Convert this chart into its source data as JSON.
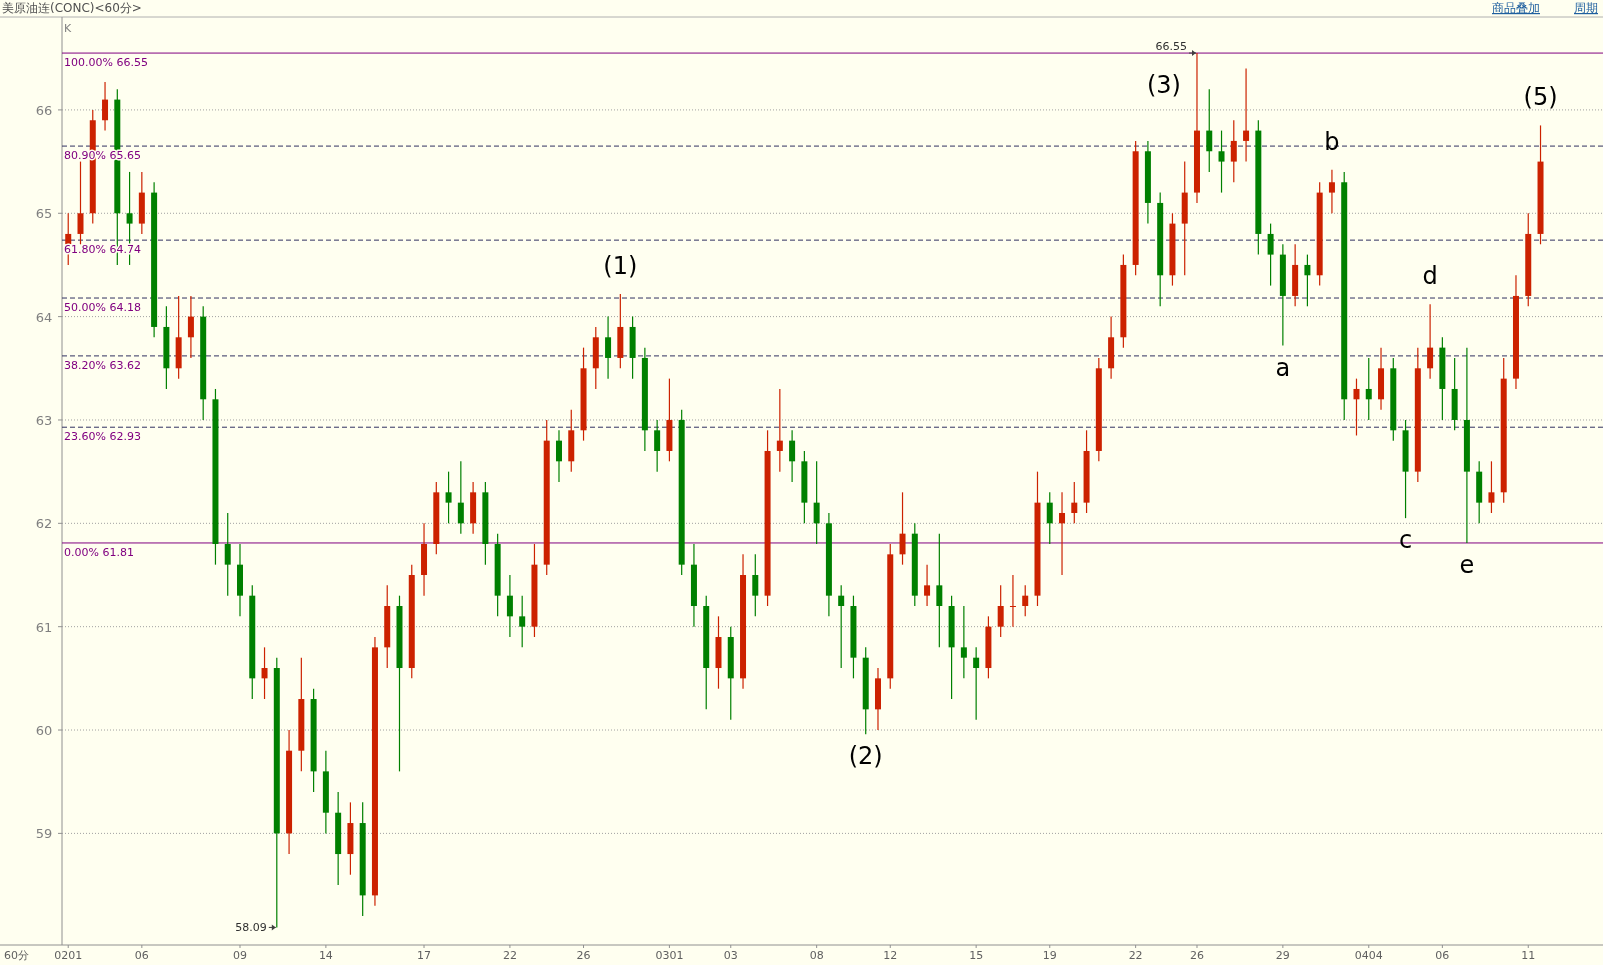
{
  "chart_data": {
    "type": "candlestick",
    "title": "美原油连(CONC)<60分>",
    "categories": [
      "0201",
      null,
      null,
      null,
      null,
      null,
      "06",
      null,
      null,
      null,
      null,
      null,
      null,
      null,
      "09",
      null,
      null,
      null,
      null,
      null,
      null,
      "14",
      null,
      null,
      null,
      null,
      null,
      null,
      null,
      "17",
      null,
      null,
      null,
      null,
      null,
      null,
      "22",
      null,
      null,
      null,
      null,
      null,
      "26",
      null,
      null,
      null,
      null,
      null,
      null,
      "0301",
      null,
      null,
      null,
      null,
      "03",
      null,
      null,
      null,
      null,
      null,
      null,
      "08",
      null,
      null,
      null,
      null,
      null,
      "12",
      null,
      null,
      null,
      null,
      null,
      null,
      "15",
      null,
      null,
      null,
      null,
      null,
      "19",
      null,
      null,
      null,
      null,
      null,
      null,
      "22",
      null,
      null,
      null,
      null,
      "26",
      null,
      null,
      null,
      null,
      null,
      null,
      "29",
      null,
      null,
      null,
      null,
      null,
      null,
      "0404",
      null,
      null,
      null,
      null,
      null,
      "06",
      null,
      null,
      null,
      null,
      null,
      null,
      "11",
      null
    ],
    "ohlc": [
      [
        64.7,
        65.0,
        64.5,
        64.8
      ],
      [
        64.8,
        65.5,
        64.7,
        65.0
      ],
      [
        65.0,
        66.0,
        64.9,
        65.9
      ],
      [
        65.9,
        66.27,
        65.8,
        66.1
      ],
      [
        66.1,
        66.2,
        64.5,
        65.0
      ],
      [
        65.0,
        65.4,
        64.5,
        64.9
      ],
      [
        64.9,
        65.4,
        64.8,
        65.2
      ],
      [
        65.2,
        65.3,
        63.8,
        63.9
      ],
      [
        63.9,
        64.1,
        63.3,
        63.5
      ],
      [
        63.5,
        64.2,
        63.4,
        63.8
      ],
      [
        63.8,
        64.2,
        63.6,
        64.0
      ],
      [
        64.0,
        64.1,
        63.0,
        63.2
      ],
      [
        63.2,
        63.3,
        61.6,
        61.8
      ],
      [
        61.8,
        62.1,
        61.3,
        61.6
      ],
      [
        61.6,
        61.8,
        61.1,
        61.3
      ],
      [
        61.3,
        61.4,
        60.3,
        60.5
      ],
      [
        60.5,
        60.8,
        60.3,
        60.6
      ],
      [
        60.6,
        60.7,
        58.09,
        59.0
      ],
      [
        59.0,
        60.0,
        58.8,
        59.8
      ],
      [
        59.8,
        60.7,
        59.6,
        60.3
      ],
      [
        60.3,
        60.4,
        59.4,
        59.6
      ],
      [
        59.6,
        59.8,
        59.0,
        59.2
      ],
      [
        59.2,
        59.4,
        58.5,
        58.8
      ],
      [
        58.8,
        59.3,
        58.6,
        59.1
      ],
      [
        59.1,
        59.3,
        58.2,
        58.4
      ],
      [
        58.4,
        60.9,
        58.3,
        60.8
      ],
      [
        60.8,
        61.4,
        60.6,
        61.2
      ],
      [
        61.2,
        61.3,
        59.6,
        60.6
      ],
      [
        60.6,
        61.6,
        60.5,
        61.5
      ],
      [
        61.5,
        62.0,
        61.3,
        61.8
      ],
      [
        61.8,
        62.4,
        61.7,
        62.3
      ],
      [
        62.3,
        62.5,
        62.0,
        62.2
      ],
      [
        62.2,
        62.6,
        61.9,
        62.0
      ],
      [
        62.0,
        62.4,
        61.9,
        62.3
      ],
      [
        62.3,
        62.4,
        61.6,
        61.8
      ],
      [
        61.8,
        61.9,
        61.1,
        61.3
      ],
      [
        61.3,
        61.5,
        60.9,
        61.1
      ],
      [
        61.1,
        61.3,
        60.8,
        61.0
      ],
      [
        61.0,
        61.8,
        60.9,
        61.6
      ],
      [
        61.6,
        63.0,
        61.5,
        62.8
      ],
      [
        62.8,
        62.9,
        62.4,
        62.6
      ],
      [
        62.6,
        63.1,
        62.5,
        62.9
      ],
      [
        62.9,
        63.7,
        62.8,
        63.5
      ],
      [
        63.5,
        63.9,
        63.3,
        63.8
      ],
      [
        63.8,
        64.0,
        63.4,
        63.6
      ],
      [
        63.6,
        64.22,
        63.5,
        63.9
      ],
      [
        63.9,
        64.0,
        63.4,
        63.6
      ],
      [
        63.6,
        63.7,
        62.7,
        62.9
      ],
      [
        62.9,
        63.0,
        62.5,
        62.7
      ],
      [
        62.7,
        63.4,
        62.6,
        63.0
      ],
      [
        63.0,
        63.1,
        61.5,
        61.6
      ],
      [
        61.6,
        61.8,
        61.0,
        61.2
      ],
      [
        61.2,
        61.3,
        60.2,
        60.6
      ],
      [
        60.6,
        61.1,
        60.4,
        60.9
      ],
      [
        60.9,
        61.0,
        60.1,
        60.5
      ],
      [
        60.5,
        61.7,
        60.4,
        61.5
      ],
      [
        61.5,
        61.7,
        61.1,
        61.3
      ],
      [
        61.3,
        62.9,
        61.2,
        62.7
      ],
      [
        62.7,
        63.3,
        62.5,
        62.8
      ],
      [
        62.8,
        62.9,
        62.4,
        62.6
      ],
      [
        62.6,
        62.7,
        62.0,
        62.2
      ],
      [
        62.2,
        62.6,
        61.8,
        62.0
      ],
      [
        62.0,
        62.1,
        61.1,
        61.3
      ],
      [
        61.3,
        61.4,
        60.6,
        61.2
      ],
      [
        61.2,
        61.3,
        60.5,
        60.7
      ],
      [
        60.7,
        60.8,
        59.96,
        60.2
      ],
      [
        60.2,
        60.6,
        60.0,
        60.5
      ],
      [
        60.5,
        61.8,
        60.4,
        61.7
      ],
      [
        61.7,
        62.3,
        61.6,
        61.9
      ],
      [
        61.9,
        62.0,
        61.2,
        61.3
      ],
      [
        61.3,
        61.6,
        61.2,
        61.4
      ],
      [
        61.4,
        61.9,
        60.8,
        61.2
      ],
      [
        61.2,
        61.3,
        60.3,
        60.8
      ],
      [
        60.8,
        61.2,
        60.5,
        60.7
      ],
      [
        60.7,
        60.8,
        60.1,
        60.6
      ],
      [
        60.6,
        61.1,
        60.5,
        61.0
      ],
      [
        61.0,
        61.4,
        60.9,
        61.2
      ],
      [
        61.2,
        61.5,
        61.0,
        61.2
      ],
      [
        61.2,
        61.4,
        61.1,
        61.3
      ],
      [
        61.3,
        62.5,
        61.2,
        62.2
      ],
      [
        62.2,
        62.3,
        61.8,
        62.0
      ],
      [
        62.0,
        62.3,
        61.5,
        62.1
      ],
      [
        62.1,
        62.4,
        62.0,
        62.2
      ],
      [
        62.2,
        62.9,
        62.1,
        62.7
      ],
      [
        62.7,
        63.6,
        62.6,
        63.5
      ],
      [
        63.5,
        64.0,
        63.4,
        63.8
      ],
      [
        63.8,
        64.6,
        63.7,
        64.5
      ],
      [
        64.5,
        65.7,
        64.4,
        65.6
      ],
      [
        65.6,
        65.7,
        64.9,
        65.1
      ],
      [
        65.1,
        65.2,
        64.1,
        64.4
      ],
      [
        64.4,
        65.0,
        64.3,
        64.9
      ],
      [
        64.9,
        65.5,
        64.4,
        65.2
      ],
      [
        65.2,
        66.55,
        65.1,
        65.8
      ],
      [
        65.8,
        66.2,
        65.4,
        65.6
      ],
      [
        65.6,
        65.8,
        65.2,
        65.5
      ],
      [
        65.5,
        65.9,
        65.3,
        65.7
      ],
      [
        65.7,
        66.4,
        65.5,
        65.8
      ],
      [
        65.8,
        65.9,
        64.6,
        64.8
      ],
      [
        64.8,
        64.9,
        64.3,
        64.6
      ],
      [
        64.6,
        64.7,
        63.72,
        64.2
      ],
      [
        64.2,
        64.7,
        64.1,
        64.5
      ],
      [
        64.5,
        64.6,
        64.1,
        64.4
      ],
      [
        64.4,
        65.3,
        64.3,
        65.2
      ],
      [
        65.2,
        65.42,
        65.0,
        65.3
      ],
      [
        65.3,
        65.4,
        63.0,
        63.2
      ],
      [
        63.2,
        63.4,
        62.85,
        63.3
      ],
      [
        63.3,
        63.6,
        63.0,
        63.2
      ],
      [
        63.2,
        63.7,
        63.1,
        63.5
      ],
      [
        63.5,
        63.6,
        62.8,
        62.9
      ],
      [
        62.9,
        63.0,
        62.05,
        62.5
      ],
      [
        62.5,
        63.7,
        62.4,
        63.5
      ],
      [
        63.5,
        64.12,
        63.4,
        63.7
      ],
      [
        63.7,
        63.8,
        63.0,
        63.3
      ],
      [
        63.3,
        63.6,
        62.9,
        63.0
      ],
      [
        63.0,
        63.7,
        61.81,
        62.5
      ],
      [
        62.5,
        62.6,
        62.0,
        62.2
      ],
      [
        62.2,
        62.6,
        62.1,
        62.3
      ],
      [
        62.3,
        63.6,
        62.2,
        63.4
      ],
      [
        63.4,
        64.4,
        63.3,
        64.2
      ],
      [
        64.2,
        65.0,
        64.1,
        64.8
      ],
      [
        64.8,
        65.85,
        64.7,
        65.5
      ]
    ],
    "ylim": [
      57.92,
      66.87
    ],
    "yticks": [
      59,
      60,
      61,
      62,
      63,
      64,
      65,
      66
    ],
    "grid": "y",
    "ref_lines": [
      {
        "axis": "y",
        "value": 66.55,
        "label": "100.00% 66.55",
        "color": "#800080",
        "line_style": "solid"
      },
      {
        "axis": "y",
        "value": 65.65,
        "label": "80.90% 65.65",
        "color": "#303060",
        "line_style": "dashed"
      },
      {
        "axis": "y",
        "value": 64.74,
        "label": "61.80% 64.74",
        "color": "#303060",
        "line_style": "dashed"
      },
      {
        "axis": "y",
        "value": 64.18,
        "label": "50.00% 64.18",
        "color": "#303060",
        "line_style": "dashed"
      },
      {
        "axis": "y",
        "value": 63.62,
        "label": "38.20% 63.62",
        "color": "#303060",
        "line_style": "dashed"
      },
      {
        "axis": "y",
        "value": 62.93,
        "label": "23.60% 62.93",
        "color": "#303060",
        "line_style": "dashed"
      },
      {
        "axis": "y",
        "value": 61.81,
        "label": "0.00% 61.81",
        "color": "#800080",
        "line_style": "solid"
      }
    ],
    "annotations": [
      "K",
      "60分",
      "商品叠加",
      "周期",
      {
        "text": "(1)",
        "y": 64.22
      },
      {
        "text": "(2)",
        "y": 59.96
      },
      "66.55",
      {
        "text": "(3)",
        "y": 66.55
      },
      {
        "text": "a",
        "y": 63.72
      },
      {
        "text": "b",
        "y": 65.42
      },
      {
        "text": "c",
        "y": 62.05
      },
      {
        "text": "d",
        "y": 64.12
      },
      {
        "text": "e",
        "y": 61.81
      },
      {
        "text": "(5)",
        "y": 65.85
      },
      "58.09"
    ]
  }
}
